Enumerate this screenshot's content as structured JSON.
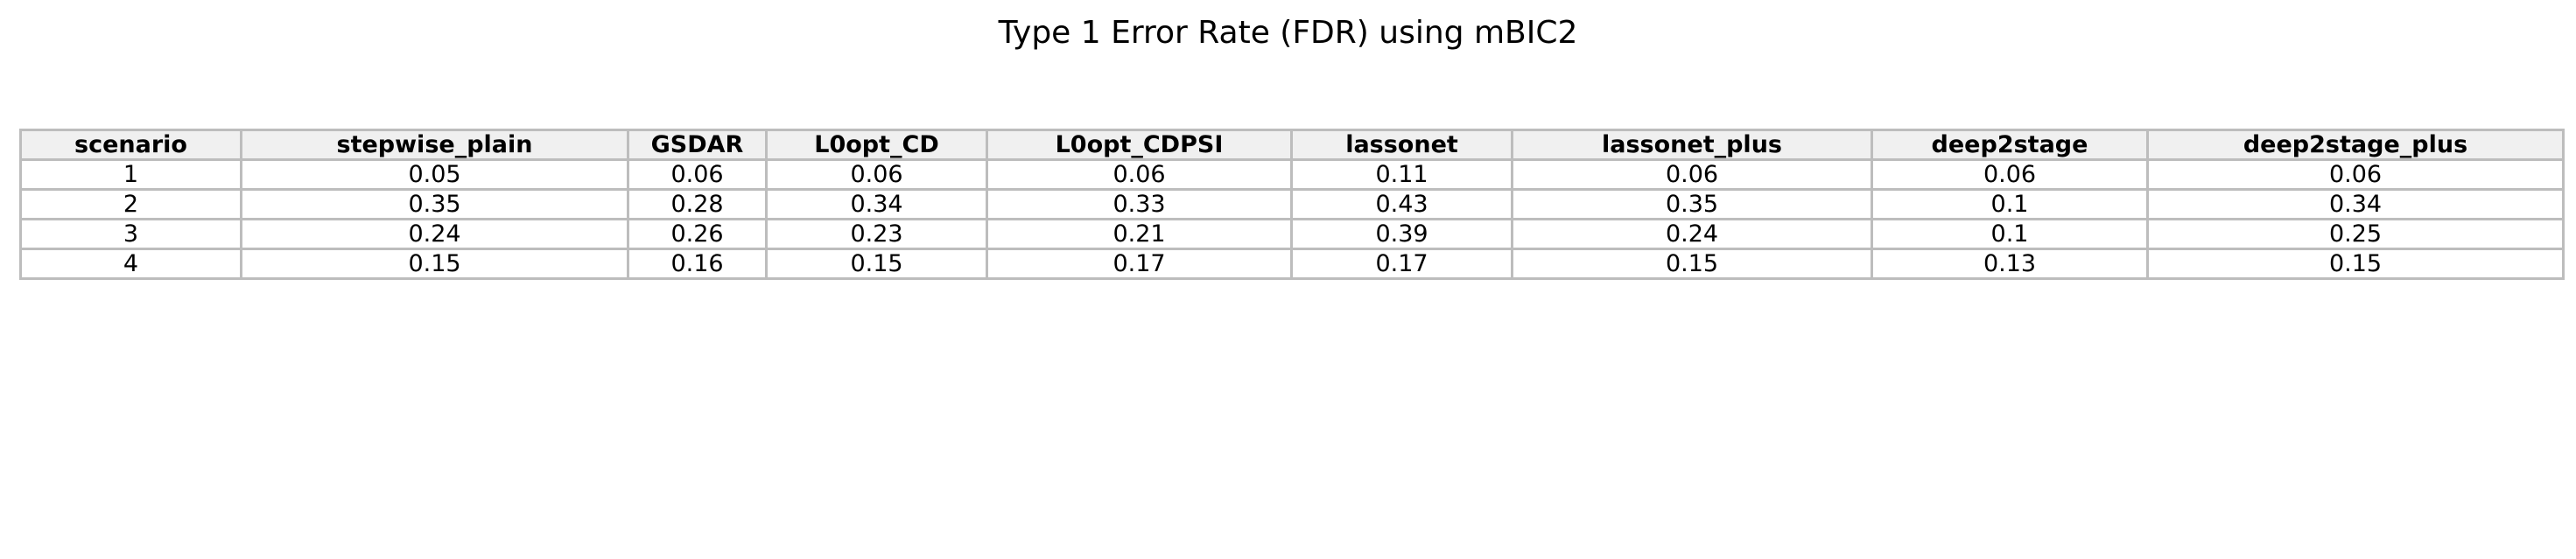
{
  "chart_data": {
    "type": "table",
    "title": "Type 1 Error Rate (FDR) using mBIC2",
    "columns": [
      "scenario",
      "stepwise_plain",
      "GSDAR",
      "L0opt_CD",
      "L0opt_CDPSI",
      "lassonet",
      "lassonet_plus",
      "deep2stage",
      "deep2stage_plus"
    ],
    "rows": [
      [
        "1",
        "0.05",
        "0.06",
        "0.06",
        "0.06",
        "0.11",
        "0.06",
        "0.06",
        "0.06"
      ],
      [
        "2",
        "0.35",
        "0.28",
        "0.34",
        "0.33",
        "0.43",
        "0.35",
        "0.1",
        "0.34"
      ],
      [
        "3",
        "0.24",
        "0.26",
        "0.23",
        "0.21",
        "0.39",
        "0.24",
        "0.1",
        "0.25"
      ],
      [
        "4",
        "0.15",
        "0.16",
        "0.15",
        "0.17",
        "0.17",
        "0.15",
        "0.13",
        "0.15"
      ]
    ]
  },
  "colors": {
    "header_background": "#f0f0f0",
    "cell_background": "#ffffff",
    "grid_line": "#bdbdbd",
    "text": "#000000"
  }
}
